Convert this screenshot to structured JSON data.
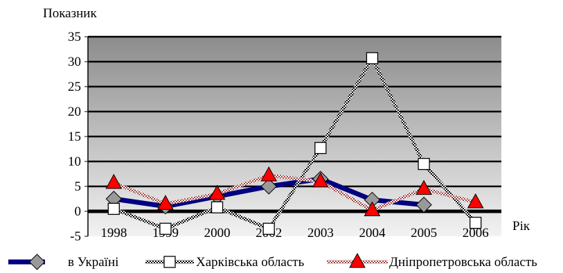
{
  "chart_data": {
    "type": "line",
    "ylabel": "Показник",
    "xlabel": "Рік",
    "categories": [
      "1998",
      "1999",
      "2000",
      "2002",
      "2003",
      "2004",
      "2005",
      "2006"
    ],
    "ylim": [
      -5,
      35
    ],
    "yticks": [
      -5,
      0,
      5,
      10,
      15,
      20,
      25,
      30,
      35
    ],
    "grid": true,
    "legend_position": "bottom",
    "series": [
      {
        "name": "в Україні",
        "marker": "diamond",
        "color": "#000080",
        "marker_color": "#999999",
        "values": [
          2.5,
          1.0,
          3.0,
          5.0,
          6.5,
          2.3,
          1.3,
          null
        ]
      },
      {
        "name": "Харківська область",
        "marker": "square",
        "color": "#000000",
        "marker_color": "#ffffff",
        "values": [
          0.5,
          -3.5,
          0.8,
          -3.5,
          12.7,
          30.7,
          9.5,
          -2.3
        ]
      },
      {
        "name": "Дніпропетровська область",
        "marker": "triangle",
        "color": "#a04040",
        "marker_color": "#ff0000",
        "values": [
          5.7,
          1.5,
          3.5,
          7.2,
          6.0,
          0.2,
          4.5,
          1.8
        ]
      }
    ]
  }
}
